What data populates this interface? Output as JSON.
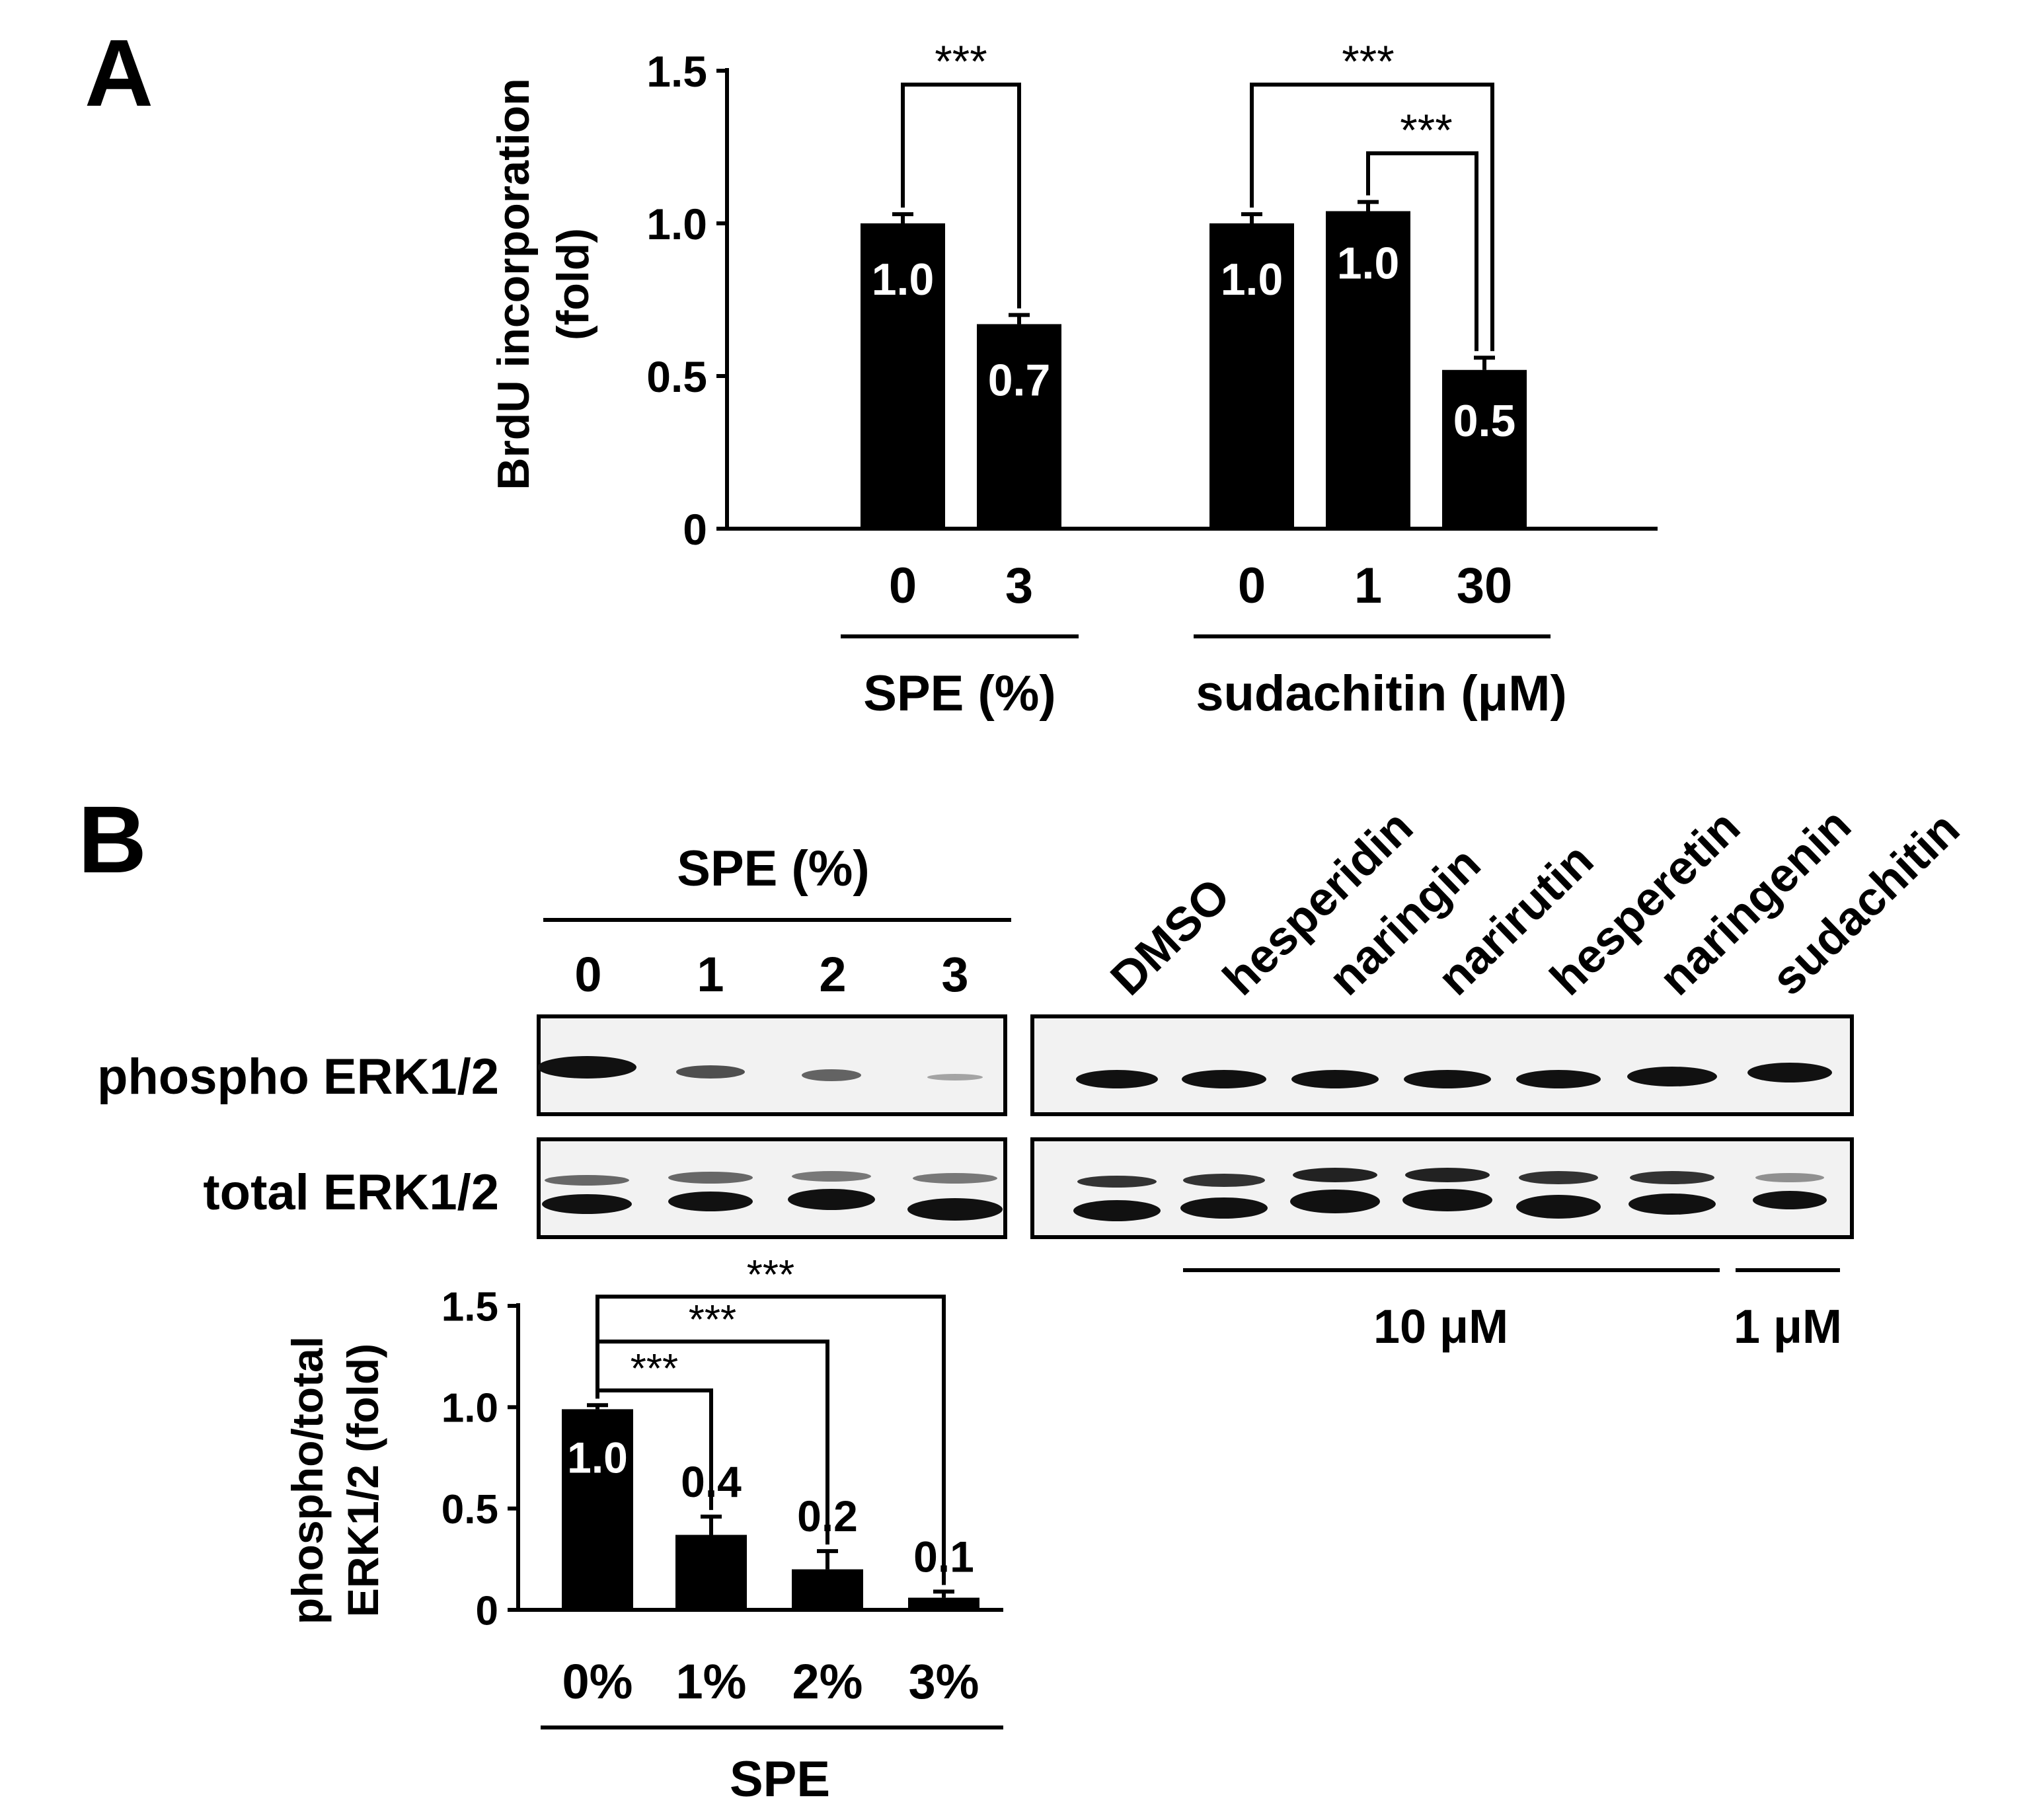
{
  "panel_a": {
    "letter": "A",
    "ylabel_line1": "BrdU incorporation",
    "ylabel_line2": "(fold)",
    "yticks": [
      "0",
      "0.5",
      "1.0",
      "1.5"
    ],
    "group1_label": "SPE (%)",
    "group2_label": "sudachitin (μM)",
    "sig_label": "***"
  },
  "panel_b": {
    "letter": "B",
    "blot_header": "SPE (%)",
    "blot_lanes_left": [
      "0",
      "1",
      "2",
      "3"
    ],
    "compounds": [
      "DMSO",
      "hesperidin",
      "naringin",
      "narirutin",
      "hesperetin",
      "naringenin",
      "sudachitin"
    ],
    "row_labels": [
      "phospho ERK1/2",
      "total ERK1/2"
    ],
    "conc_labels": [
      "10 μM",
      "1 μM"
    ],
    "ylabel_line1": "phospho/total",
    "ylabel_line2": "ERK1/2 (fold)",
    "yticks": [
      "0",
      "0.5",
      "1.0",
      "1.5"
    ],
    "xgroup_label": "SPE",
    "sig_label": "***"
  },
  "chart_data": [
    {
      "type": "bar",
      "panel": "A",
      "categories": [
        "0",
        "3",
        "0",
        "1",
        "30"
      ],
      "groups": [
        {
          "label": "SPE (%)",
          "categories": [
            "0",
            "3"
          ]
        },
        {
          "label": "sudachitin (μM)",
          "categories": [
            "0",
            "1",
            "30"
          ]
        }
      ],
      "values": [
        1.0,
        0.67,
        1.0,
        1.04,
        0.52
      ],
      "errors": [
        0.03,
        0.03,
        0.03,
        0.03,
        0.04
      ],
      "data_labels": [
        "1.0",
        "0.7",
        "1.0",
        "1.0",
        "0.5"
      ],
      "ylabel": "BrdU incorporation (fold)",
      "ylim": [
        0,
        1.5
      ],
      "significance": [
        {
          "from": 0,
          "to": 1,
          "label": "***"
        },
        {
          "from": 2,
          "to": 4,
          "label": "***"
        },
        {
          "from": 3,
          "to": 4,
          "label": "***"
        }
      ]
    },
    {
      "type": "bar",
      "panel": "B",
      "categories": [
        "0%",
        "1%",
        "2%",
        "3%"
      ],
      "values": [
        0.99,
        0.37,
        0.2,
        0.06
      ],
      "errors": [
        0.02,
        0.09,
        0.09,
        0.03
      ],
      "data_labels": [
        "1.0",
        "0.4",
        "0.2",
        "0.1"
      ],
      "xlabel": "SPE",
      "ylabel": "phospho/total ERK1/2 (fold)",
      "ylim": [
        0,
        1.5
      ],
      "significance": [
        {
          "from": 0,
          "to": 1,
          "label": "***"
        },
        {
          "from": 0,
          "to": 2,
          "label": "***"
        },
        {
          "from": 0,
          "to": 3,
          "label": "***"
        }
      ]
    }
  ]
}
